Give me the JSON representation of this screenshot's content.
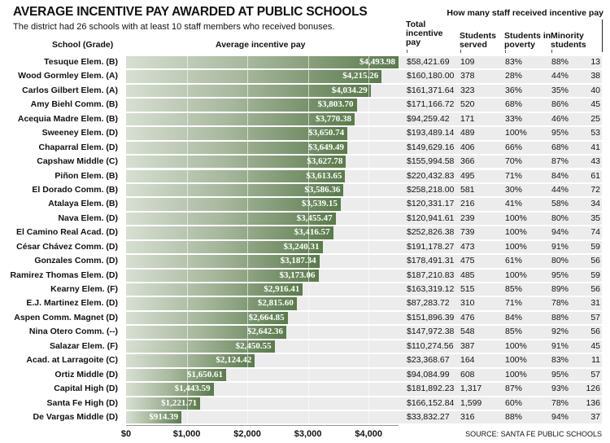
{
  "title": "AVERAGE INCENTIVE PAY AWARDED AT PUBLIC SCHOOLS",
  "subtitle": "The district had 26 schools with at least 10 staff members who received bonuses.",
  "staff_header": "How many staff received incentive pay",
  "headers": {
    "school": "School (Grade)",
    "avg": "Average incentive pay",
    "total": "Total incentive pay",
    "served": "Students served",
    "poverty": "Students in poverty",
    "minority": "Minority students"
  },
  "source": "SOURCE: SANTA FE PUBLIC SCHOOLS",
  "colors": {
    "bar_light": "#d7dfd2",
    "bar_dark": "#5a7a4c",
    "row_bg": "#ececec"
  },
  "chart_data": {
    "type": "bar",
    "orientation": "horizontal",
    "xlim": [
      0,
      4500
    ],
    "xticks": [
      "$0",
      "$1,000",
      "$2,000",
      "$3,000",
      "$4,000"
    ],
    "xtick_values": [
      0,
      1000,
      2000,
      3000,
      4000
    ],
    "categories": [
      "Tesuque Elem. (B)",
      "Wood Gormley Elem. (A)",
      "Carlos Gilbert Elem. (A)",
      "Amy Biehl Comm. (B)",
      "Acequia Madre Elem. (B)",
      "Sweeney Elem. (D)",
      "Chaparral Elem. (D)",
      "Capshaw Middle (C)",
      "Piñon Elem. (B)",
      "El Dorado Comm. (B)",
      "Atalaya Elem. (B)",
      "Nava Elem. (D)",
      "El Camino Real Acad. (D)",
      "César Chávez Comm. (D)",
      "Gonzales Comm. (D)",
      "Ramirez Thomas Elem. (D)",
      "Kearny Elem. (F)",
      "E.J. Martinez Elem. (D)",
      "Aspen Comm. Magnet (D)",
      "Nina Otero Comm. (--)",
      "Salazar Elem. (F)",
      "Acad. at Larragoite (C)",
      "Ortiz Middle (D)",
      "Capital High (D)",
      "Santa Fe High (D)",
      "De Vargas Middle (D)"
    ],
    "values": [
      4493.98,
      4215.26,
      4034.29,
      3803.7,
      3770.38,
      3650.74,
      3649.49,
      3627.78,
      3613.65,
      3586.36,
      3539.15,
      3455.47,
      3416.57,
      3240.31,
      3187.34,
      3173.06,
      2916.41,
      2815.6,
      2664.85,
      2642.36,
      2450.55,
      2124.42,
      1650.61,
      1443.59,
      1221.71,
      914.39
    ],
    "labels": [
      "$4,493.98",
      "$4,215.26",
      "$4,034.29",
      "$3,803.70",
      "$3,770.38",
      "$3,650.74",
      "$3,649.49",
      "$3,627.78",
      "$3,613.65",
      "$3,586.36",
      "$3,539.15",
      "$3,455.47",
      "$3,416.57",
      "$3,240.31",
      "$3,187.34",
      "$3,173.06",
      "$2,916.41",
      "$2,815.60",
      "$2,664.85",
      "$2,642.36",
      "$2,450.55",
      "$2,124.42",
      "$1,650.61",
      "$1,443.59",
      "$1,221.71",
      "$914.39"
    ],
    "xlabel": "Average incentive pay",
    "ylabel": "School (Grade)",
    "grid": true
  },
  "table": [
    [
      "$58,421.69",
      "109",
      "83%",
      "88%",
      "13"
    ],
    [
      "$160,180.00",
      "378",
      "28%",
      "44%",
      "38"
    ],
    [
      "$161,371.64",
      "323",
      "36%",
      "35%",
      "40"
    ],
    [
      "$171,166.72",
      "520",
      "68%",
      "86%",
      "45"
    ],
    [
      "$94,259.42",
      "171",
      "33%",
      "46%",
      "25"
    ],
    [
      "$193,489.14",
      "489",
      "100%",
      "95%",
      "53"
    ],
    [
      "$149,629.16",
      "406",
      "66%",
      "68%",
      "41"
    ],
    [
      "$155,994.58",
      "366",
      "70%",
      "87%",
      "43"
    ],
    [
      "$220,432.83",
      "495",
      "71%",
      "84%",
      "61"
    ],
    [
      "$258,218.00",
      "581",
      "30%",
      "44%",
      "72"
    ],
    [
      "$120,331.17",
      "216",
      "41%",
      "58%",
      "34"
    ],
    [
      "$120,941.61",
      "239",
      "100%",
      "80%",
      "35"
    ],
    [
      "$252,826.38",
      "739",
      "100%",
      "94%",
      "74"
    ],
    [
      "$191,178.27",
      "473",
      "100%",
      "91%",
      "59"
    ],
    [
      "$178,491.31",
      "475",
      "61%",
      "80%",
      "56"
    ],
    [
      "$187,210.83",
      "485",
      "100%",
      "95%",
      "59"
    ],
    [
      "$163,319.12",
      "515",
      "85%",
      "89%",
      "56"
    ],
    [
      "$87,283.72",
      "310",
      "71%",
      "78%",
      "31"
    ],
    [
      "$151,896.39",
      "476",
      "84%",
      "88%",
      "57"
    ],
    [
      "$147,972.38",
      "548",
      "85%",
      "92%",
      "56"
    ],
    [
      "$110,274.56",
      "387",
      "100%",
      "91%",
      "45"
    ],
    [
      "$23,368.67",
      "164",
      "100%",
      "83%",
      "11"
    ],
    [
      "$94,084.99",
      "608",
      "100%",
      "95%",
      "57"
    ],
    [
      "$181,892.23",
      "1,317",
      "87%",
      "93%",
      "126"
    ],
    [
      "$166,152.84",
      "1,599",
      "60%",
      "78%",
      "136"
    ],
    [
      "$33,832.27",
      "316",
      "88%",
      "94%",
      "37"
    ]
  ]
}
